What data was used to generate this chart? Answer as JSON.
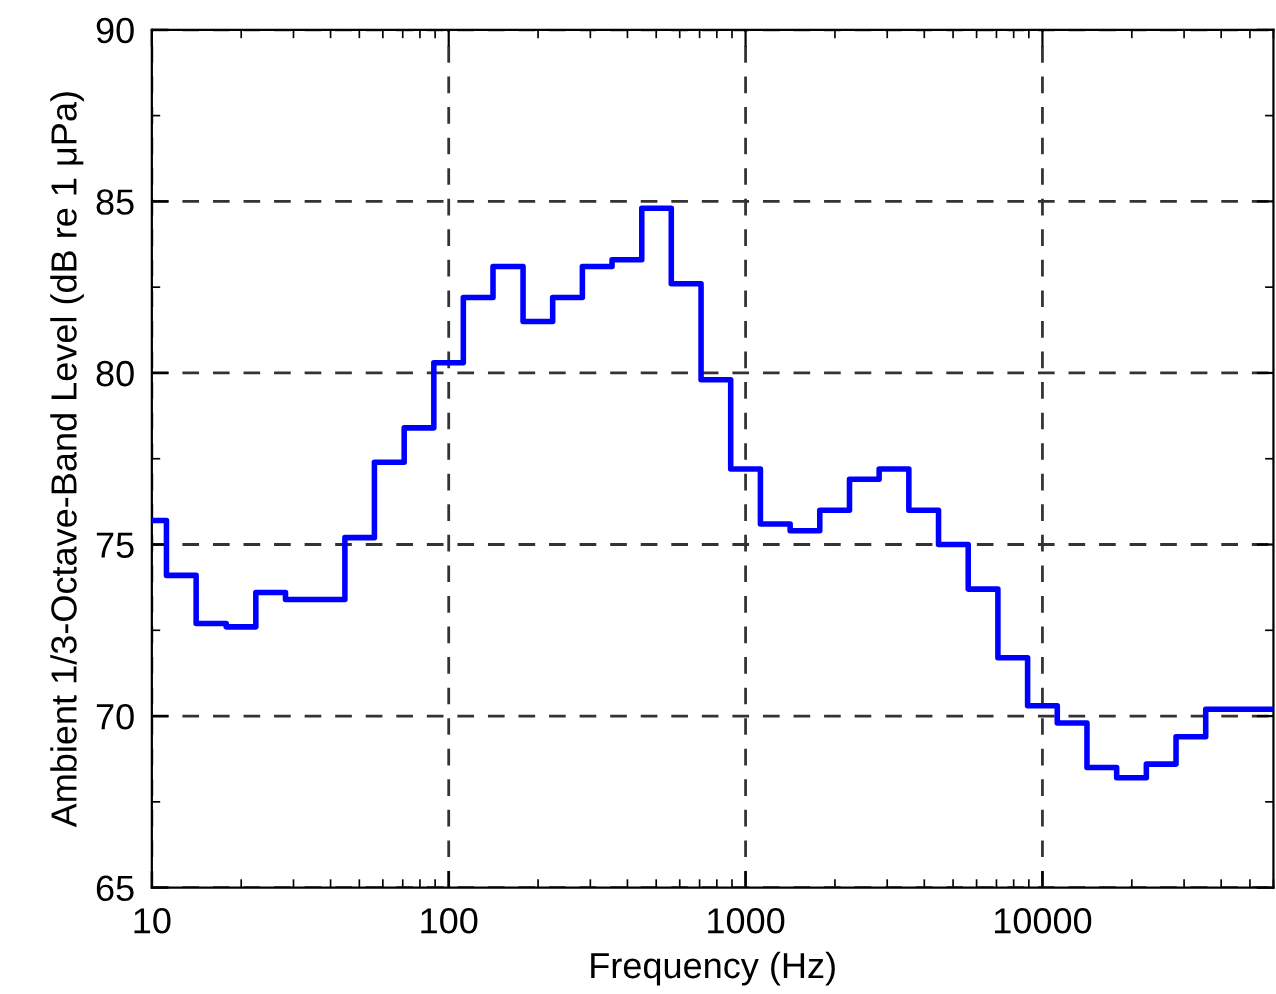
{
  "chart_data": {
    "type": "step",
    "xlabel": "Frequency (Hz)",
    "ylabel": "Ambient 1/3-Octave-Band Level (dB re 1 μPa)",
    "x": [
      10,
      11.2,
      14.1,
      17.8,
      22.4,
      28.2,
      35.5,
      44.7,
      56.2,
      70.8,
      89.1,
      112,
      141,
      178,
      224,
      282,
      355,
      447,
      562,
      708,
      891,
      1122,
      1413,
      1778,
      2239,
      2818,
      3548,
      4467,
      5623,
      7079,
      8913,
      11220,
      14125,
      17783,
      22387,
      28184,
      35481,
      60000
    ],
    "series": [
      {
        "color": "#0000ff",
        "values": [
          75.7,
          74.1,
          72.7,
          72.6,
          73.6,
          73.4,
          73.4,
          75.2,
          77.4,
          78.4,
          80.3,
          82.2,
          83.1,
          81.5,
          82.2,
          83.1,
          83.3,
          84.8,
          82.6,
          79.8,
          77.2,
          75.6,
          75.4,
          76.0,
          76.9,
          77.2,
          76.0,
          75.0,
          73.7,
          71.7,
          70.3,
          69.8,
          68.5,
          68.2,
          68.6,
          69.4,
          70.2,
          70.2
        ]
      }
    ],
    "log": "x",
    "xlim": [
      10,
      60000
    ],
    "xticks": [
      10,
      100,
      1000,
      10000
    ],
    "ylim": [
      65,
      90
    ],
    "yticks": [
      65,
      70,
      75,
      80,
      85,
      90
    ],
    "grid": true,
    "line_style": "solid"
  }
}
